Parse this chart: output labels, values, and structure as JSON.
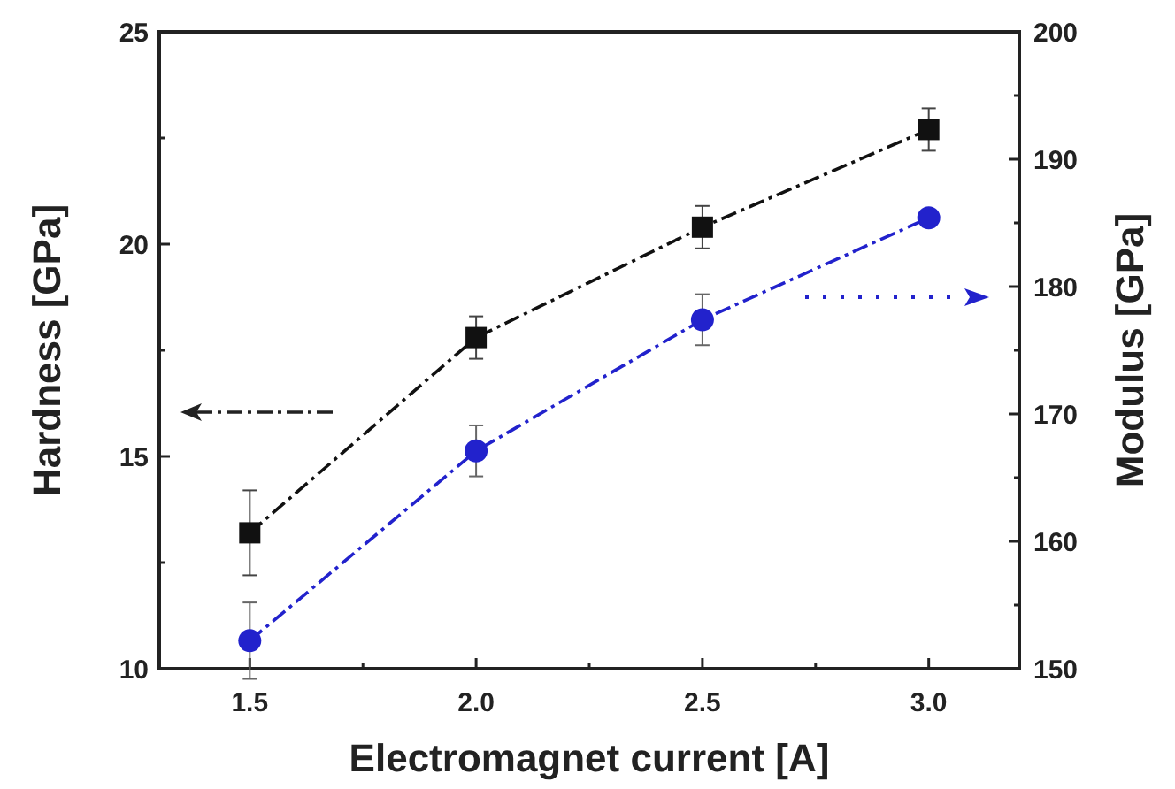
{
  "chart_data": {
    "type": "line",
    "xlabel": "Electromagnet current [A]",
    "ylabel": "Hardness [GPa]",
    "y2label": "Modulus [GPa]",
    "x": [
      1.5,
      2.0,
      2.5,
      3.0
    ],
    "xlim": [
      1.3,
      3.2
    ],
    "xticks": [
      1.5,
      {
        "value": 1.75,
        "label": null
      },
      {
        "value": 2,
        "label": "2.0"
      },
      {
        "value": 2.25,
        "label": null
      },
      2.5,
      {
        "value": 2.75,
        "label": null
      },
      {
        "value": 3,
        "label": "3.0"
      }
    ],
    "ylim": [
      10,
      25
    ],
    "yticks": [
      10,
      {
        "value": 12.5,
        "label": null
      },
      15,
      {
        "value": 17.5,
        "label": null
      },
      20,
      {
        "value": 22.5,
        "label": null
      },
      25
    ],
    "y2lim": [
      150,
      200
    ],
    "y2ticks": [
      150,
      {
        "value": 155,
        "label": null
      },
      160,
      {
        "value": 165,
        "label": null
      },
      170,
      {
        "value": 175,
        "label": null
      },
      180,
      {
        "value": 185,
        "label": null
      },
      190,
      {
        "value": 195,
        "label": null
      },
      200
    ],
    "series": [
      {
        "color": "#111111",
        "values": [
          13.2,
          17.8,
          20.4,
          22.7
        ],
        "errors": [
          1.0,
          0.5,
          0.5,
          0.5
        ],
        "marker": "square",
        "line_style": "dashed"
      },
      {
        "color": "#2222cc",
        "values": [
          152.2,
          167.1,
          177.4,
          185.4
        ],
        "errors": [
          3,
          2,
          2,
          null
        ],
        "marker": "circle",
        "line_style": "dashed",
        "axis": "y2"
      }
    ],
    "grid": false
  }
}
